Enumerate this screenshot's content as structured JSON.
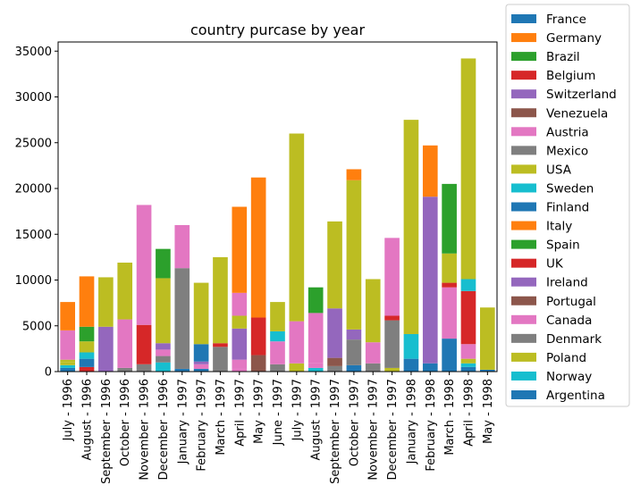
{
  "chart_data": {
    "type": "bar",
    "stacked": true,
    "title": "country purcase by year",
    "xlabel": "",
    "ylabel": "",
    "ylim": [
      0,
      36000
    ],
    "yticks": [
      0,
      5000,
      10000,
      15000,
      20000,
      25000,
      30000,
      35000
    ],
    "grid": false,
    "legend_position": "right outside",
    "categories": [
      "July - 1996",
      "August - 1996",
      "September - 1996",
      "October - 1996",
      "November - 1996",
      "December - 1996",
      "January - 1997",
      "February - 1997",
      "March - 1997",
      "April - 1997",
      "May - 1997",
      "June - 1997",
      "July - 1997",
      "August - 1997",
      "September - 1997",
      "October - 1997",
      "November - 1997",
      "December - 1997",
      "January - 1998",
      "February - 1998",
      "March - 1998",
      "April - 1998",
      "May - 1998"
    ],
    "series": [
      {
        "name": "France",
        "color": "#1f77b4",
        "values": [
          400,
          0,
          0,
          0,
          0,
          0,
          0,
          0,
          0,
          0,
          0,
          0,
          0,
          0,
          0,
          0,
          0,
          0,
          0,
          0,
          0,
          0,
          0
        ]
      },
      {
        "name": "Germany",
        "color": "#ff7f0e",
        "values": [
          0,
          0,
          0,
          0,
          0,
          0,
          0,
          0,
          0,
          0,
          0,
          0,
          0,
          0,
          0,
          0,
          0,
          0,
          0,
          0,
          0,
          0,
          0
        ]
      },
      {
        "name": "Brazil",
        "color": "#2ca02c",
        "values": [
          0,
          0,
          0,
          0,
          0,
          0,
          0,
          0,
          0,
          0,
          0,
          0,
          0,
          0,
          0,
          0,
          0,
          0,
          0,
          0,
          0,
          0,
          0
        ]
      },
      {
        "name": "Belgium",
        "color": "#d62728",
        "values": [
          0,
          500,
          0,
          0,
          0,
          0,
          0,
          0,
          0,
          0,
          0,
          0,
          0,
          0,
          0,
          0,
          0,
          0,
          0,
          0,
          0,
          0,
          0
        ]
      },
      {
        "name": "Switzerland",
        "color": "#9467bd",
        "values": [
          0,
          0,
          0,
          0,
          0,
          0,
          0,
          0,
          0,
          0,
          0,
          0,
          0,
          0,
          0,
          0,
          0,
          0,
          0,
          0,
          0,
          0,
          0
        ]
      },
      {
        "name": "Venezuela",
        "color": "#8c564b",
        "values": [
          0,
          0,
          0,
          0,
          0,
          0,
          0,
          0,
          0,
          0,
          0,
          0,
          0,
          0,
          0,
          0,
          0,
          0,
          0,
          0,
          0,
          0,
          0
        ]
      },
      {
        "name": "Austria",
        "color": "#e377c2",
        "values": [
          0,
          0,
          0,
          0,
          0,
          0,
          0,
          0,
          0,
          0,
          0,
          0,
          0,
          0,
          0,
          0,
          0,
          0,
          0,
          0,
          0,
          0,
          0
        ]
      },
      {
        "name": "Mexico",
        "color": "#7f7f7f",
        "values": [
          0,
          0,
          0,
          0,
          0,
          0,
          0,
          0,
          0,
          0,
          0,
          0,
          0,
          0,
          0,
          0,
          0,
          0,
          0,
          0,
          0,
          0,
          0
        ]
      },
      {
        "name": "USA",
        "color": "#bcbd22",
        "values": [
          0,
          0,
          0,
          0,
          0,
          0,
          0,
          0,
          0,
          0,
          0,
          0,
          0,
          0,
          0,
          0,
          0,
          0,
          0,
          0,
          0,
          0,
          0
        ]
      },
      {
        "name": "Sweden",
        "color": "#17becf",
        "values": [
          300,
          0,
          0,
          0,
          0,
          1000,
          0,
          0,
          0,
          0,
          0,
          0,
          0,
          0,
          0,
          0,
          0,
          0,
          0,
          0,
          0,
          0,
          0
        ]
      },
      {
        "name": "Finland",
        "color": "#1f77b4",
        "values": [
          0,
          900,
          0,
          0,
          0,
          0,
          300,
          300,
          0,
          0,
          0,
          0,
          0,
          0,
          0,
          700,
          0,
          0,
          1400,
          900,
          3600,
          500,
          0
        ]
      },
      {
        "name": "Italy",
        "color": "#ff7f0e",
        "values": [
          0,
          0,
          0,
          0,
          0,
          0,
          0,
          0,
          0,
          0,
          0,
          0,
          0,
          0,
          0,
          0,
          0,
          0,
          0,
          0,
          0,
          0,
          0
        ]
      },
      {
        "name": "Spain",
        "color": "#2ca02c",
        "values": [
          0,
          0,
          0,
          0,
          0,
          0,
          0,
          0,
          0,
          0,
          0,
          0,
          0,
          0,
          0,
          0,
          0,
          0,
          0,
          0,
          0,
          0,
          0
        ]
      },
      {
        "name": "UK",
        "color": "#d62728",
        "values": [
          0,
          0,
          0,
          0,
          0,
          0,
          0,
          0,
          0,
          0,
          0,
          0,
          0,
          0,
          0,
          0,
          0,
          0,
          0,
          0,
          0,
          0,
          0
        ]
      },
      {
        "name": "Ireland",
        "color": "#9467bd",
        "values": [
          0,
          0,
          0,
          0,
          0,
          0,
          0,
          0,
          0,
          0,
          0,
          0,
          0,
          0,
          0,
          0,
          0,
          0,
          0,
          0,
          0,
          0,
          0
        ]
      },
      {
        "name": "Portugal",
        "color": "#8c564b",
        "values": [
          0,
          0,
          0,
          0,
          0,
          0,
          0,
          0,
          0,
          0,
          0,
          0,
          0,
          0,
          0,
          0,
          0,
          0,
          0,
          0,
          0,
          0,
          0
        ]
      },
      {
        "name": "Canada",
        "color": "#e377c2",
        "values": [
          0,
          0,
          0,
          0,
          0,
          0,
          0,
          0,
          0,
          0,
          0,
          0,
          0,
          0,
          0,
          0,
          0,
          0,
          0,
          0,
          0,
          0,
          0
        ]
      },
      {
        "name": "Denmark",
        "color": "#7f7f7f",
        "values": [
          0,
          0,
          0,
          0,
          0,
          0,
          0,
          0,
          0,
          0,
          0,
          0,
          0,
          0,
          0,
          0,
          0,
          0,
          0,
          0,
          0,
          0,
          0
        ]
      },
      {
        "name": "Poland",
        "color": "#bcbd22",
        "values": [
          0,
          0,
          0,
          0,
          0,
          0,
          0,
          0,
          0,
          0,
          0,
          0,
          0,
          0,
          0,
          0,
          0,
          0,
          0,
          0,
          0,
          0,
          0
        ]
      },
      {
        "name": "Norway",
        "color": "#17becf",
        "values": [
          0,
          700,
          0,
          0,
          0,
          0,
          0,
          0,
          0,
          0,
          0,
          0,
          0,
          0,
          0,
          0,
          0,
          0,
          0,
          0,
          0,
          0,
          0
        ]
      },
      {
        "name": "Argentina",
        "color": "#1f77b4",
        "values": [
          0,
          0,
          0,
          0,
          0,
          0,
          0,
          0,
          0,
          0,
          0,
          0,
          0,
          0,
          0,
          0,
          0,
          0,
          0,
          0,
          0,
          0,
          0
        ]
      }
    ],
    "segments": [
      [
        [
          0,
          400,
          "#1f77b4"
        ],
        [
          400,
          700,
          "#17becf"
        ],
        [
          700,
          1000,
          "#bcbd22"
        ],
        [
          1000,
          1300,
          "#bcbd22"
        ],
        [
          1300,
          4500,
          "#e377c2"
        ],
        [
          4500,
          7600,
          "#ff7f0e"
        ]
      ],
      [
        [
          0,
          500,
          "#d62728"
        ],
        [
          500,
          1400,
          "#1f77b4"
        ],
        [
          1400,
          2100,
          "#17becf"
        ],
        [
          2100,
          3300,
          "#bcbd22"
        ],
        [
          3300,
          4900,
          "#2ca02c"
        ],
        [
          4900,
          10400,
          "#ff7f0e"
        ]
      ],
      [
        [
          0,
          4900,
          "#9467bd"
        ],
        [
          4900,
          10300,
          "#bcbd22"
        ]
      ],
      [
        [
          0,
          400,
          "#7f7f7f"
        ],
        [
          400,
          5700,
          "#e377c2"
        ],
        [
          5700,
          11900,
          "#bcbd22"
        ]
      ],
      [
        [
          0,
          800,
          "#7f7f7f"
        ],
        [
          800,
          5100,
          "#d62728"
        ],
        [
          5100,
          18200,
          "#e377c2"
        ]
      ],
      [
        [
          0,
          1000,
          "#17becf"
        ],
        [
          1000,
          1700,
          "#7f7f7f"
        ],
        [
          1700,
          2400,
          "#e377c2"
        ],
        [
          2400,
          3100,
          "#9467bd"
        ],
        [
          3100,
          10200,
          "#bcbd22"
        ],
        [
          10200,
          13400,
          "#2ca02c"
        ]
      ],
      [
        [
          0,
          300,
          "#1f77b4"
        ],
        [
          300,
          11300,
          "#7f7f7f"
        ],
        [
          11300,
          16000,
          "#e377c2"
        ]
      ],
      [
        [
          0,
          300,
          "#1f77b4"
        ],
        [
          300,
          800,
          "#e377c2"
        ],
        [
          800,
          1100,
          "#9467bd"
        ],
        [
          1100,
          3000,
          "#1f77b4"
        ],
        [
          3000,
          9700,
          "#bcbd22"
        ]
      ],
      [
        [
          0,
          2700,
          "#7f7f7f"
        ],
        [
          2700,
          3100,
          "#d62728"
        ],
        [
          3100,
          12500,
          "#bcbd22"
        ]
      ],
      [
        [
          0,
          300,
          "#e377c2"
        ],
        [
          300,
          1300,
          "#e377c2"
        ],
        [
          1300,
          4700,
          "#9467bd"
        ],
        [
          4700,
          6100,
          "#bcbd22"
        ],
        [
          6100,
          8600,
          "#e377c2"
        ],
        [
          8600,
          18000,
          "#ff7f0e"
        ]
      ],
      [
        [
          0,
          1800,
          "#8c564b"
        ],
        [
          1800,
          5900,
          "#d62728"
        ],
        [
          5900,
          21200,
          "#ff7f0e"
        ]
      ],
      [
        [
          0,
          800,
          "#7f7f7f"
        ],
        [
          800,
          3300,
          "#e377c2"
        ],
        [
          3300,
          4400,
          "#17becf"
        ],
        [
          4400,
          7600,
          "#bcbd22"
        ]
      ],
      [
        [
          0,
          900,
          "#bcbd22"
        ],
        [
          900,
          5500,
          "#e377c2"
        ],
        [
          5500,
          26000,
          "#bcbd22"
        ]
      ],
      [
        [
          0,
          400,
          "#17becf"
        ],
        [
          400,
          900,
          "#e377c2"
        ],
        [
          900,
          6400,
          "#e377c2"
        ],
        [
          6400,
          9200,
          "#2ca02c"
        ]
      ],
      [
        [
          0,
          600,
          "#7f7f7f"
        ],
        [
          600,
          1500,
          "#8c564b"
        ],
        [
          1500,
          6900,
          "#9467bd"
        ],
        [
          6900,
          16400,
          "#bcbd22"
        ]
      ],
      [
        [
          0,
          700,
          "#1f77b4"
        ],
        [
          700,
          3500,
          "#7f7f7f"
        ],
        [
          3500,
          4600,
          "#9467bd"
        ],
        [
          4600,
          20900,
          "#bcbd22"
        ],
        [
          20900,
          22100,
          "#ff7f0e"
        ]
      ],
      [
        [
          0,
          900,
          "#7f7f7f"
        ],
        [
          900,
          3200,
          "#e377c2"
        ],
        [
          3200,
          10100,
          "#bcbd22"
        ]
      ],
      [
        [
          0,
          400,
          "#bcbd22"
        ],
        [
          400,
          5600,
          "#7f7f7f"
        ],
        [
          5600,
          6100,
          "#d62728"
        ],
        [
          6100,
          14600,
          "#e377c2"
        ]
      ],
      [
        [
          0,
          1400,
          "#1f77b4"
        ],
        [
          1400,
          4100,
          "#17becf"
        ],
        [
          4100,
          27500,
          "#bcbd22"
        ]
      ],
      [
        [
          0,
          900,
          "#1f77b4"
        ],
        [
          900,
          19100,
          "#9467bd"
        ],
        [
          19100,
          24700,
          "#ff7f0e"
        ]
      ],
      [
        [
          0,
          3600,
          "#1f77b4"
        ],
        [
          3600,
          9200,
          "#e377c2"
        ],
        [
          9200,
          9700,
          "#d62728"
        ],
        [
          9700,
          12900,
          "#bcbd22"
        ],
        [
          12900,
          20500,
          "#2ca02c"
        ]
      ],
      [
        [
          0,
          500,
          "#1f77b4"
        ],
        [
          500,
          900,
          "#17becf"
        ],
        [
          900,
          1400,
          "#bcbd22"
        ],
        [
          1400,
          3000,
          "#e377c2"
        ],
        [
          3000,
          8800,
          "#d62728"
        ],
        [
          8800,
          10100,
          "#17becf"
        ],
        [
          10100,
          34200,
          "#bcbd22"
        ]
      ],
      [
        [
          0,
          200,
          "#1f77b4"
        ],
        [
          200,
          7000,
          "#bcbd22"
        ]
      ]
    ]
  }
}
